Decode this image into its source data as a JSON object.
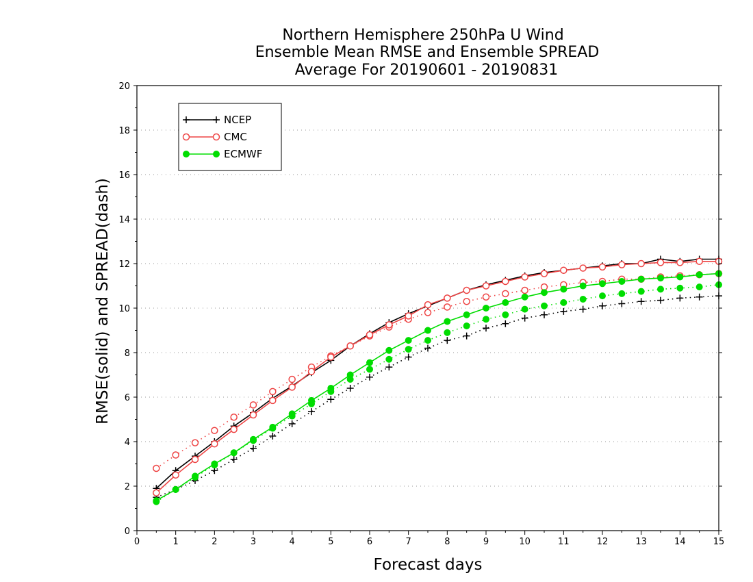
{
  "chart_data": {
    "type": "line",
    "title": [
      "Northern Hemisphere 250hPa U Wind",
      "Ensemble Mean RMSE and Ensemble SPREAD",
      "Average For 20190601 - 20190831"
    ],
    "xlabel": "Forecast days",
    "ylabel": "RMSE(solid) and SPREAD(dash)",
    "xlim": [
      0,
      15
    ],
    "ylim": [
      0,
      20
    ],
    "x_ticks": [
      "0",
      "1",
      "2",
      "3",
      "4",
      "5",
      "6",
      "7",
      "8",
      "9",
      "10",
      "11",
      "12",
      "13",
      "14",
      "15"
    ],
    "y_ticks": [
      "0",
      "2",
      "4",
      "6",
      "8",
      "10",
      "12",
      "14",
      "16",
      "18",
      "20"
    ],
    "grid": "horizontal dotted",
    "legend_position": "top-left",
    "x": [
      0.5,
      1,
      1.5,
      2,
      2.5,
      3,
      3.5,
      4,
      4.5,
      5,
      5.5,
      6,
      6.5,
      7,
      7.5,
      8,
      8.5,
      9,
      9.5,
      10,
      10.5,
      11,
      11.5,
      12,
      12.5,
      13,
      13.5,
      14,
      14.5,
      15
    ],
    "series": [
      {
        "name": "NCEP",
        "color": "#000000",
        "marker": "plus",
        "rmse": [
          1.9,
          2.7,
          3.35,
          4.0,
          4.7,
          5.3,
          5.95,
          6.5,
          7.1,
          7.65,
          8.3,
          8.85,
          9.35,
          9.75,
          10.1,
          10.45,
          10.8,
          11.05,
          11.25,
          11.45,
          11.6,
          11.7,
          11.8,
          11.9,
          12.0,
          12.0,
          12.2,
          12.1,
          12.2,
          12.2
        ],
        "spread": [
          1.5,
          1.85,
          2.25,
          2.7,
          3.2,
          3.7,
          4.25,
          4.8,
          5.35,
          5.9,
          6.4,
          6.9,
          7.35,
          7.8,
          8.2,
          8.55,
          8.75,
          9.1,
          9.3,
          9.55,
          9.7,
          9.85,
          9.95,
          10.1,
          10.2,
          10.3,
          10.35,
          10.45,
          10.5,
          10.55
        ]
      },
      {
        "name": "CMC",
        "color": "#ee4444",
        "marker": "circle-open",
        "rmse": [
          1.7,
          2.5,
          3.2,
          3.9,
          4.55,
          5.2,
          5.85,
          6.45,
          7.15,
          7.8,
          8.3,
          8.8,
          9.25,
          9.65,
          10.15,
          10.45,
          10.8,
          11.0,
          11.2,
          11.4,
          11.55,
          11.7,
          11.8,
          11.85,
          11.95,
          12.0,
          12.05,
          12.05,
          12.1,
          12.1
        ],
        "spread": [
          2.8,
          3.4,
          3.95,
          4.5,
          5.1,
          5.65,
          6.25,
          6.8,
          7.35,
          7.85,
          8.3,
          8.75,
          9.15,
          9.5,
          9.8,
          10.05,
          10.3,
          10.5,
          10.65,
          10.8,
          10.95,
          11.05,
          11.15,
          11.2,
          11.3,
          11.3,
          11.4,
          11.45,
          11.5,
          11.55
        ]
      },
      {
        "name": "ECMWF",
        "color": "#00dd00",
        "marker": "circle-filled",
        "rmse": [
          1.35,
          1.85,
          2.45,
          3.0,
          3.5,
          4.1,
          4.65,
          5.25,
          5.85,
          6.4,
          7.0,
          7.55,
          8.1,
          8.55,
          9.0,
          9.4,
          9.7,
          10.0,
          10.25,
          10.5,
          10.7,
          10.85,
          11.0,
          11.1,
          11.2,
          11.3,
          11.35,
          11.4,
          11.5,
          11.55
        ],
        "spread": [
          1.3,
          1.85,
          2.4,
          2.95,
          3.5,
          4.05,
          4.6,
          5.15,
          5.7,
          6.25,
          6.8,
          7.25,
          7.7,
          8.15,
          8.55,
          8.9,
          9.2,
          9.5,
          9.7,
          9.95,
          10.1,
          10.25,
          10.4,
          10.55,
          10.65,
          10.75,
          10.85,
          10.9,
          10.95,
          11.05
        ]
      }
    ]
  }
}
